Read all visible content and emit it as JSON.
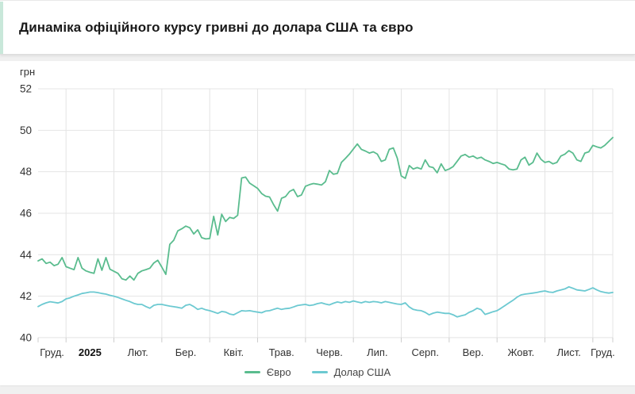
{
  "title": "Динаміка офіційного курсу гривні до долара США та євро",
  "colors": {
    "euro_line": "#5abc8e",
    "usd_line": "#6cc9d1",
    "grid": "#e4e4e4",
    "accent_bar": "#c9e8da",
    "page_bg": "#f0f0f0",
    "card_bg": "#ffffff",
    "axis_text": "#333333",
    "title_text": "#1a1a1a"
  },
  "chart_data": {
    "type": "line",
    "title": "Динаміка офіційного курсу гривні до долара США та євро",
    "unit_label": "грн",
    "ylabel": "грн",
    "ylim": [
      40,
      52
    ],
    "y_ticks": [
      52,
      50,
      48,
      46,
      44,
      42,
      40
    ],
    "grid": "on",
    "legend_position": "bottom",
    "x_labels": [
      "Груд.",
      "2025",
      "Лют.",
      "Бер.",
      "Квіт.",
      "Трав.",
      "Черв.",
      "Лип.",
      "Серп.",
      "Вер.",
      "Жовт.",
      "Лист.",
      "Груд."
    ],
    "bold_x_label_index": 1,
    "month_boundary_indices": [
      7,
      19,
      31,
      43,
      55,
      67,
      79,
      91,
      103,
      115,
      127,
      139,
      144
    ],
    "series": [
      {
        "name": "Євро",
        "color": "#5abc8e",
        "values": [
          43.7,
          43.8,
          43.58,
          43.64,
          43.47,
          43.54,
          43.86,
          43.42,
          43.35,
          43.28,
          43.86,
          43.35,
          43.22,
          43.15,
          43.1,
          43.8,
          43.25,
          43.86,
          43.3,
          43.2,
          43.1,
          42.84,
          42.78,
          42.97,
          42.78,
          43.1,
          43.22,
          43.28,
          43.35,
          43.6,
          43.73,
          43.4,
          43.05,
          44.5,
          44.7,
          45.15,
          45.25,
          45.38,
          45.3,
          45.0,
          45.2,
          44.82,
          44.76,
          44.78,
          45.85,
          44.95,
          45.95,
          45.6,
          45.8,
          45.75,
          45.9,
          47.7,
          47.74,
          47.45,
          47.33,
          47.2,
          46.95,
          46.82,
          46.78,
          46.42,
          46.1,
          46.72,
          46.8,
          47.05,
          47.15,
          46.8,
          46.88,
          47.3,
          47.38,
          47.43,
          47.4,
          47.36,
          47.52,
          48.06,
          47.88,
          47.92,
          48.45,
          48.64,
          48.85,
          49.1,
          49.34,
          49.08,
          49.0,
          48.9,
          48.96,
          48.85,
          48.5,
          48.57,
          49.08,
          49.15,
          48.66,
          47.8,
          47.68,
          48.3,
          48.13,
          48.2,
          48.13,
          48.57,
          48.25,
          48.2,
          47.95,
          48.38,
          48.06,
          48.13,
          48.25,
          48.5,
          48.76,
          48.83,
          48.7,
          48.76,
          48.64,
          48.7,
          48.57,
          48.5,
          48.4,
          48.45,
          48.38,
          48.32,
          48.13,
          48.09,
          48.13,
          48.57,
          48.7,
          48.32,
          48.45,
          48.9,
          48.6,
          48.45,
          48.5,
          48.38,
          48.45,
          48.76,
          48.85,
          49.02,
          48.9,
          48.57,
          48.5,
          48.9,
          48.96,
          49.27,
          49.2,
          49.15,
          49.27,
          49.46,
          49.65
        ]
      },
      {
        "name": "Долар США",
        "color": "#6cc9d1",
        "values": [
          41.5,
          41.6,
          41.68,
          41.73,
          41.7,
          41.67,
          41.74,
          41.87,
          41.92,
          42.0,
          42.06,
          42.13,
          42.16,
          42.2,
          42.2,
          42.17,
          42.13,
          42.1,
          42.04,
          42.0,
          41.94,
          41.87,
          41.8,
          41.74,
          41.65,
          41.6,
          41.6,
          41.5,
          41.42,
          41.56,
          41.6,
          41.6,
          41.56,
          41.52,
          41.49,
          41.46,
          41.42,
          41.56,
          41.6,
          41.5,
          41.36,
          41.42,
          41.34,
          41.3,
          41.24,
          41.17,
          41.26,
          41.23,
          41.14,
          41.1,
          41.2,
          41.3,
          41.28,
          41.3,
          41.26,
          41.23,
          41.2,
          41.28,
          41.3,
          41.36,
          41.42,
          41.36,
          41.4,
          41.42,
          41.48,
          41.55,
          41.58,
          41.6,
          41.55,
          41.58,
          41.64,
          41.68,
          41.62,
          41.58,
          41.66,
          41.72,
          41.68,
          41.74,
          41.7,
          41.77,
          41.72,
          41.68,
          41.74,
          41.7,
          41.74,
          41.72,
          41.68,
          41.74,
          41.7,
          41.66,
          41.62,
          41.6,
          41.68,
          41.48,
          41.36,
          41.32,
          41.3,
          41.22,
          41.1,
          41.18,
          41.23,
          41.2,
          41.17,
          41.17,
          41.1,
          41.0,
          41.05,
          41.1,
          41.22,
          41.3,
          41.42,
          41.35,
          41.12,
          41.18,
          41.25,
          41.3,
          41.42,
          41.55,
          41.68,
          41.8,
          41.95,
          42.06,
          42.1,
          42.12,
          42.15,
          42.18,
          42.22,
          42.25,
          42.2,
          42.18,
          42.25,
          42.3,
          42.35,
          42.45,
          42.38,
          42.3,
          42.28,
          42.25,
          42.32,
          42.4,
          42.3,
          42.22,
          42.18,
          42.15,
          42.18
        ]
      }
    ]
  }
}
